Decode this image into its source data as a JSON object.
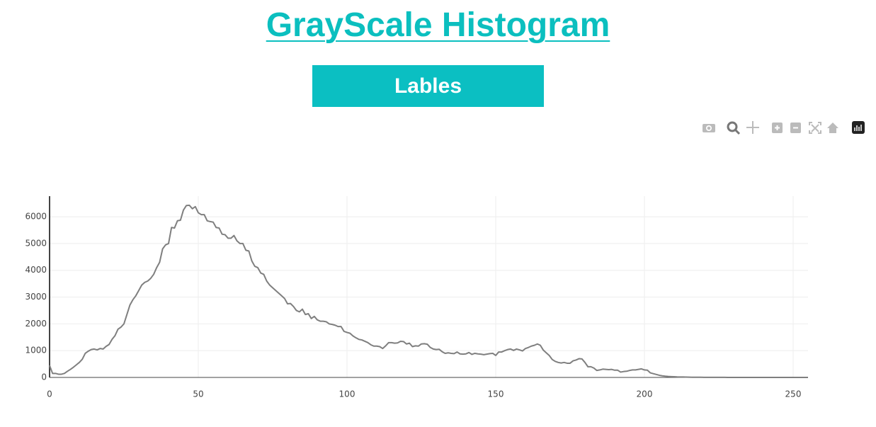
{
  "header": {
    "title": "GrayScale Histogram",
    "button": "Lables"
  },
  "chart_data": {
    "type": "line",
    "color": "#7f7f7f",
    "grid": true,
    "xlim": [
      0,
      255
    ],
    "ylim": [
      0,
      6770
    ],
    "xticks": [
      0,
      50,
      100,
      150,
      200,
      250
    ],
    "yticks": [
      0,
      1000,
      2000,
      3000,
      4000,
      5000,
      6000
    ],
    "x": [
      0,
      1,
      2,
      3,
      4,
      5,
      6,
      7,
      8,
      9,
      10,
      11,
      12,
      13,
      14,
      15,
      16,
      17,
      18,
      19,
      20,
      21,
      22,
      23,
      24,
      25,
      26,
      27,
      28,
      29,
      30,
      31,
      32,
      33,
      34,
      35,
      36,
      37,
      38,
      39,
      40,
      41,
      42,
      43,
      44,
      45,
      46,
      47,
      48,
      49,
      50,
      51,
      52,
      53,
      54,
      55,
      56,
      57,
      58,
      59,
      60,
      61,
      62,
      63,
      64,
      65,
      66,
      67,
      68,
      69,
      70,
      71,
      72,
      73,
      74,
      75,
      76,
      77,
      78,
      79,
      80,
      81,
      82,
      83,
      84,
      85,
      86,
      87,
      88,
      89,
      90,
      91,
      92,
      93,
      94,
      95,
      96,
      97,
      98,
      99,
      100,
      101,
      102,
      103,
      104,
      105,
      106,
      107,
      108,
      109,
      110,
      111,
      112,
      113,
      114,
      115,
      116,
      117,
      118,
      119,
      120,
      121,
      122,
      123,
      124,
      125,
      126,
      127,
      128,
      129,
      130,
      131,
      132,
      133,
      134,
      135,
      136,
      137,
      138,
      139,
      140,
      141,
      142,
      143,
      144,
      145,
      146,
      147,
      148,
      149,
      150,
      151,
      152,
      153,
      154,
      155,
      156,
      157,
      158,
      159,
      160,
      161,
      162,
      163,
      164,
      165,
      166,
      167,
      168,
      169,
      170,
      171,
      172,
      173,
      174,
      175,
      176,
      177,
      178,
      179,
      180,
      181,
      182,
      183,
      184,
      185,
      186,
      187,
      188,
      189,
      190,
      191,
      192,
      193,
      194,
      195,
      196,
      197,
      198,
      199,
      200,
      201,
      202,
      203,
      204,
      205,
      206,
      207,
      208,
      209,
      210,
      211,
      212,
      213,
      214,
      215,
      216,
      217,
      218,
      219,
      220,
      221,
      222,
      223,
      224,
      225,
      226,
      227,
      228,
      229,
      230,
      231,
      232,
      233,
      234,
      235,
      236,
      237,
      238,
      239,
      240,
      241,
      242,
      243,
      244,
      245,
      246,
      247,
      248,
      249,
      250,
      251,
      252,
      253,
      254,
      255
    ],
    "values": [
      450,
      150,
      150,
      120,
      120,
      150,
      230,
      300,
      380,
      470,
      560,
      680,
      900,
      980,
      1040,
      1060,
      1030,
      1080,
      1060,
      1160,
      1230,
      1420,
      1560,
      1800,
      1880,
      2000,
      2350,
      2700,
      2900,
      3050,
      3250,
      3450,
      3550,
      3600,
      3700,
      3850,
      4100,
      4300,
      4800,
      4950,
      5000,
      5600,
      5580,
      5850,
      5870,
      6250,
      6420,
      6430,
      6300,
      6380,
      6150,
      6080,
      6080,
      5850,
      5820,
      5800,
      5600,
      5580,
      5350,
      5330,
      5200,
      5200,
      5300,
      5100,
      5000,
      5000,
      4750,
      4720,
      4350,
      4150,
      4100,
      3900,
      3850,
      3600,
      3450,
      3350,
      3250,
      3150,
      3050,
      2950,
      2750,
      2760,
      2650,
      2500,
      2450,
      2550,
      2350,
      2380,
      2200,
      2280,
      2150,
      2100,
      2100,
      2080,
      2000,
      1980,
      1950,
      1900,
      1900,
      1720,
      1680,
      1650,
      1550,
      1480,
      1420,
      1400,
      1350,
      1300,
      1220,
      1170,
      1170,
      1150,
      1080,
      1180,
      1300,
      1300,
      1280,
      1290,
      1350,
      1340,
      1250,
      1280,
      1150,
      1180,
      1170,
      1250,
      1260,
      1240,
      1120,
      1060,
      1040,
      1050,
      960,
      900,
      920,
      900,
      890,
      950,
      880,
      870,
      880,
      930,
      860,
      900,
      880,
      870,
      850,
      870,
      890,
      900,
      820,
      950,
      950,
      1000,
      1040,
      1060,
      1010,
      1060,
      1030,
      990,
      1080,
      1120,
      1170,
      1200,
      1250,
      1200,
      1020,
      920,
      820,
      670,
      600,
      560,
      540,
      560,
      530,
      530,
      620,
      650,
      700,
      690,
      560,
      400,
      400,
      350,
      260,
      280,
      310,
      300,
      290,
      300,
      270,
      270,
      200,
      220,
      230,
      260,
      280,
      280,
      300,
      320,
      280,
      270,
      170,
      140,
      110,
      80,
      60,
      45,
      35,
      30,
      25,
      20,
      18,
      15,
      12,
      10,
      8,
      7,
      6,
      5,
      4,
      4,
      3,
      3,
      2,
      2,
      2,
      2,
      1,
      1,
      1,
      1,
      1,
      1,
      1,
      1,
      0,
      0,
      0,
      0,
      0,
      0,
      0,
      0,
      0,
      0,
      0,
      0,
      0,
      0,
      0,
      0,
      0,
      0,
      0,
      0
    ]
  }
}
